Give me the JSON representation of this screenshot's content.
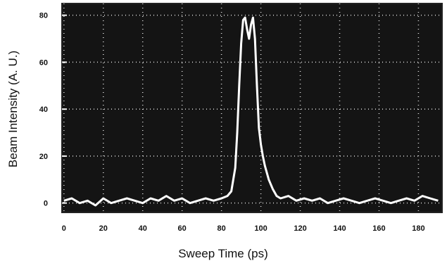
{
  "chart_data": {
    "type": "line",
    "x_label": "Sweep Time (ps)",
    "y_label": "Beam Intensity (A. U.)",
    "x": [
      0,
      4,
      8,
      12,
      16,
      20,
      24,
      28,
      32,
      36,
      40,
      44,
      48,
      52,
      56,
      60,
      64,
      68,
      72,
      76,
      80,
      83,
      85,
      87,
      88,
      89,
      90,
      91,
      92,
      93,
      94,
      95,
      96,
      97,
      98,
      99,
      100,
      101,
      102,
      104,
      106,
      108,
      110,
      114,
      118,
      122,
      126,
      130,
      134,
      138,
      142,
      146,
      150,
      154,
      158,
      162,
      166,
      170,
      174,
      178,
      182,
      186,
      190
    ],
    "series": [
      {
        "color": "#ffffff",
        "values": [
          1,
          2,
          0,
          1,
          -1,
          2,
          0,
          1,
          2,
          1,
          0,
          2,
          1,
          3,
          1,
          2,
          0,
          1,
          2,
          1,
          2,
          3,
          5,
          15,
          30,
          50,
          68,
          78,
          79,
          74,
          70,
          76,
          79,
          70,
          50,
          32,
          25,
          20,
          16,
          10,
          6,
          3,
          2,
          3,
          1,
          2,
          1,
          2,
          0,
          1,
          2,
          1,
          0,
          1,
          2,
          1,
          0,
          1,
          2,
          1,
          3,
          2,
          1
        ]
      }
    ],
    "xlim": [
      -1,
      192
    ],
    "ylim": [
      -4,
      85
    ],
    "xticks": [
      0,
      20,
      40,
      60,
      80,
      100,
      120,
      140,
      160,
      180
    ],
    "yticks": [
      0,
      20,
      40,
      60,
      80
    ],
    "grid": true,
    "background": "#141414"
  }
}
